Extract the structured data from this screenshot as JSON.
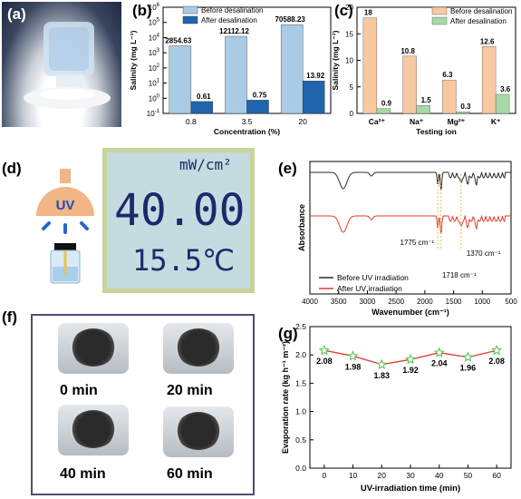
{
  "panel_labels": {
    "a": "(a)",
    "b": "(b)",
    "c": "(c)",
    "d": "(d)",
    "e": "(e)",
    "f": "(f)",
    "g": "(g)"
  },
  "uv_icon_text": "UV",
  "lcd": {
    "unit": "mW/cm²",
    "intensity": "40.00",
    "temperature": "15.5℃"
  },
  "photo_times": [
    "0 min",
    "20 min",
    "40 min",
    "60 min"
  ],
  "colors": {
    "before_b": "#a9cbe6",
    "after_b": "#1f64ad",
    "before_c": "#f6c9a0",
    "after_c": "#a8d8a8",
    "before_line": "#2b2b2b",
    "after_line": "#e53935",
    "annot": "#e0c24a",
    "evap_line": "#e53935",
    "evap_marker": "#53c24f",
    "frame": "#4a5170"
  },
  "chart_data": [
    {
      "id": "b",
      "type": "bar",
      "scale": "log",
      "categories": [
        "0.8",
        "3.5",
        "20"
      ],
      "series": [
        {
          "name": "Before desalination",
          "values": [
            2854.63,
            12112.12,
            70588.23
          ],
          "labels": [
            "2854.63",
            "12112.12",
            "70588.23"
          ]
        },
        {
          "name": "After desalination",
          "values": [
            0.61,
            0.75,
            13.92
          ],
          "labels": [
            "0.61",
            "0.75",
            "13.92"
          ]
        }
      ],
      "xlabel": "Concentration (%)",
      "ylabel": "Salinity (mg L⁻¹)",
      "ylim": [
        0.1,
        1000000
      ],
      "yticks": [
        {
          "value": 0.1,
          "base": "10",
          "exp": "-1"
        },
        {
          "value": 1,
          "base": "10",
          "exp": "0"
        },
        {
          "value": 10,
          "base": "10",
          "exp": "1"
        },
        {
          "value": 100,
          "base": "10",
          "exp": "2"
        },
        {
          "value": 1000,
          "base": "10",
          "exp": "3"
        },
        {
          "value": 10000,
          "base": "10",
          "exp": "4"
        },
        {
          "value": 100000,
          "base": "10",
          "exp": "5"
        },
        {
          "value": 1000000,
          "base": "10",
          "exp": "6"
        }
      ],
      "legend": "top"
    },
    {
      "id": "c",
      "type": "bar",
      "categories": [
        "Ca²⁺",
        "Na⁺",
        "Mg²⁺",
        "K⁺"
      ],
      "series": [
        {
          "name": "Before desalination",
          "values": [
            18,
            10.8,
            6.3,
            12.6
          ],
          "labels": [
            "18",
            "10.8",
            "6.3",
            "12.6"
          ]
        },
        {
          "name": "After desalination",
          "values": [
            0.9,
            1.5,
            0.3,
            3.6
          ],
          "labels": [
            "0.9",
            "1.5",
            "0.3",
            "3.6"
          ]
        }
      ],
      "xlabel": "Testing ion",
      "ylabel": "Salinity (mg L⁻¹)",
      "ylim": [
        0,
        20
      ],
      "yticks": [
        "0",
        "5",
        "10",
        "15",
        "20"
      ],
      "legend": "top-right"
    },
    {
      "id": "e",
      "type": "line",
      "xlabel": "Wavenumber (cm⁻¹)",
      "ylabel": "Absorbance",
      "xlim": [
        4000,
        500
      ],
      "xticks": [
        "4000",
        "3500",
        "3000",
        "2500",
        "2000",
        "1500",
        "1000",
        "500"
      ],
      "series": [
        {
          "name": "Before UV irradiation",
          "peaks": [
            3420,
            1775,
            1718,
            1370
          ]
        },
        {
          "name": "After UV irradiation",
          "peaks": [
            3420,
            1775,
            1718,
            1370
          ]
        }
      ],
      "annotations": [
        "1775 cm⁻¹",
        "1718 cm⁻¹",
        "1370 cm⁻¹"
      ],
      "legend": "bottom-right"
    },
    {
      "id": "g",
      "type": "line",
      "x": [
        0,
        10,
        20,
        30,
        40,
        50,
        60
      ],
      "series": [
        {
          "values": [
            2.08,
            1.98,
            1.83,
            1.92,
            2.04,
            1.96,
            2.08
          ],
          "labels": [
            "2.08",
            "1.98",
            "1.83",
            "1.92",
            "2.04",
            "1.96",
            "2.08"
          ]
        }
      ],
      "xlabel": "UV-irradiation time (min)",
      "ylabel": "Evaporation rate (kg h⁻¹ m⁻²)",
      "xlim": [
        -5,
        65
      ],
      "ylim": [
        0,
        2.5
      ],
      "xticks": [
        "0",
        "10",
        "20",
        "30",
        "40",
        "50",
        "60"
      ],
      "yticks": [
        "0.0",
        "0.5",
        "1.0",
        "1.5",
        "2.0",
        "2.5"
      ]
    }
  ]
}
